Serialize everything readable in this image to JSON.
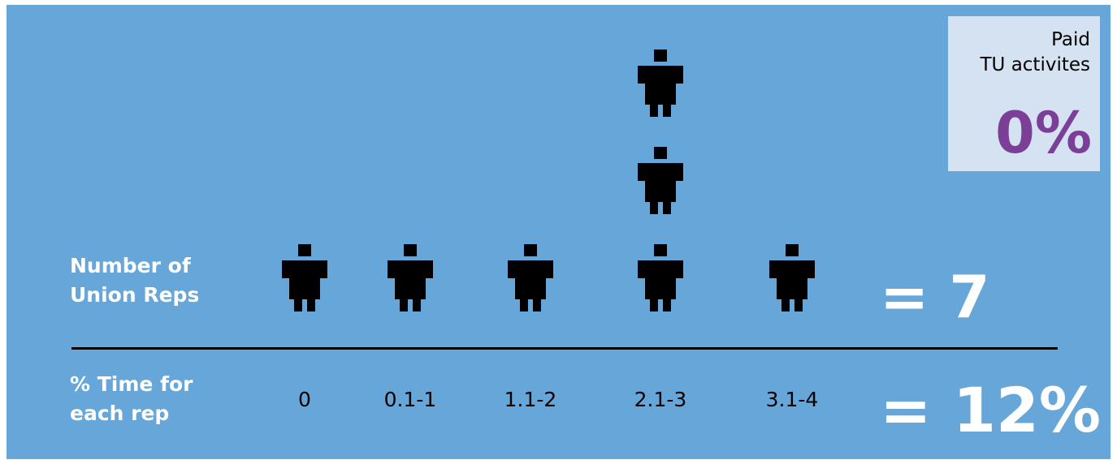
{
  "colors": {
    "background": "#67a6d8",
    "figure": "#000000",
    "callout_background": "#d5e2f2",
    "callout_value": "#7b3f98",
    "label_text": "#ffffff"
  },
  "labels": {
    "reps_row": "Number of\nUnion Reps",
    "time_row": "% Time for\neach rep"
  },
  "totals": {
    "reps": "= 7",
    "time": "= 12%"
  },
  "callout": {
    "label": "Paid\nTU activites",
    "value": "0%"
  },
  "chart_data": {
    "type": "bar",
    "categories": [
      "0",
      "0.1-1",
      "1.1-2",
      "2.1-3",
      "3.1-4"
    ],
    "series": [
      {
        "values": [
          1,
          1,
          1,
          3,
          1
        ],
        "icon": "person-icon"
      }
    ]
  }
}
